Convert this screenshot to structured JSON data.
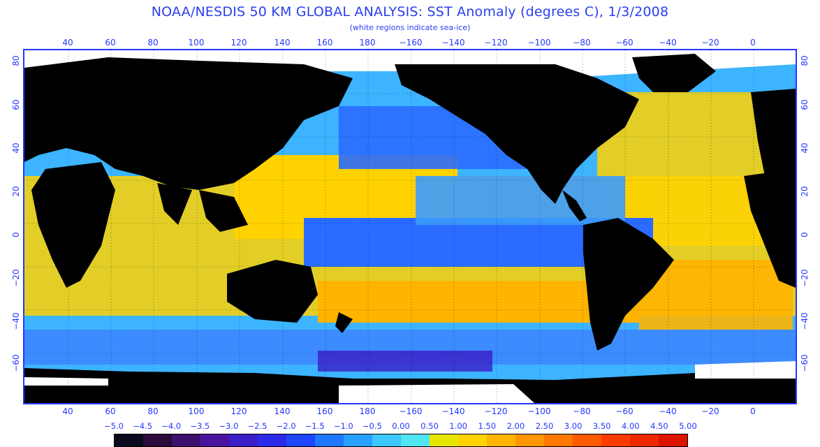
{
  "header": {
    "title": "NOAA/NESDIS 50 KM GLOBAL ANALYSIS: SST Anomaly (degrees C), 1/3/2008",
    "subtitle": "(white regions indicate sea-ice)"
  },
  "map": {
    "lon_labels": [
      "40",
      "60",
      "80",
      "100",
      "120",
      "140",
      "160",
      "180",
      "−160",
      "−140",
      "−120",
      "−100",
      "−80",
      "−60",
      "−40",
      "−20",
      "0"
    ],
    "lat_labels_left": [
      "80",
      "60",
      "40",
      "20",
      "0",
      "−20",
      "−40",
      "−60"
    ],
    "lat_labels_right": [
      "80",
      "60",
      "40",
      "20",
      "0",
      "−20",
      "−40",
      "−60"
    ]
  },
  "legend": {
    "labels": [
      "−5.0",
      "−4.5",
      "−4.0",
      "−3.5",
      "−3.0",
      "−2.5",
      "−2.0",
      "−1.5",
      "−1.0",
      "−0.5",
      "0.00",
      "0.50",
      "1.00",
      "1.50",
      "2.00",
      "2.50",
      "3.00",
      "3.50",
      "4.00",
      "4.50",
      "5.00"
    ],
    "colors": [
      "#0a0a1e",
      "#2a0a3a",
      "#3d0f6e",
      "#4a14a0",
      "#3a1ec8",
      "#2a2ae8",
      "#1e46ff",
      "#1e78ff",
      "#28a0ff",
      "#3cc8ff",
      "#50e6f0",
      "#e6e600",
      "#ffd200",
      "#ffb400",
      "#ff9600",
      "#ff7800",
      "#ff5a00",
      "#ff3c00",
      "#f02800",
      "#dc1400"
    ]
  }
}
